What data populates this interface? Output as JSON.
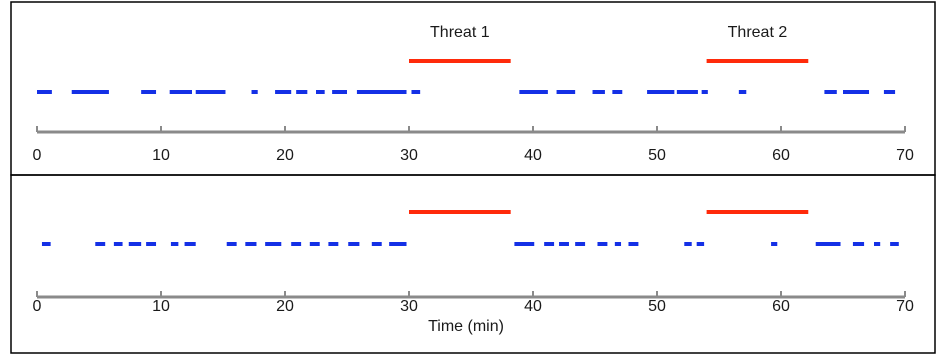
{
  "chart_data": [
    {
      "type": "timeline",
      "xlim": [
        0,
        70
      ],
      "xticks": [
        "0",
        "10",
        "20",
        "30",
        "40",
        "50",
        "60",
        "70"
      ],
      "xlabel": "",
      "threat_color": "#ff2a0a",
      "activity_color": "#1430e6",
      "threats": [
        {
          "label": "Threat 1",
          "start": 30,
          "end": 38.2
        },
        {
          "label": "Threat 2",
          "start": 54,
          "end": 62.2
        }
      ],
      "activity_segments": [
        [
          0,
          1.2
        ],
        [
          2.8,
          5.8
        ],
        [
          8.4,
          9.6
        ],
        [
          10.7,
          12.5
        ],
        [
          12.8,
          15.2
        ],
        [
          17.3,
          17.8
        ],
        [
          19.2,
          20.5
        ],
        [
          20.9,
          21.8
        ],
        [
          22.5,
          23.2
        ],
        [
          23.8,
          25.0
        ],
        [
          25.8,
          29.8
        ],
        [
          30.2,
          30.9
        ],
        [
          38.9,
          41.2
        ],
        [
          41.9,
          43.4
        ],
        [
          44.8,
          45.8
        ],
        [
          46.4,
          47.2
        ],
        [
          49.2,
          51.4
        ],
        [
          51.6,
          53.3
        ],
        [
          53.6,
          54.1
        ],
        [
          56.6,
          57.2
        ],
        [
          63.5,
          64.5
        ],
        [
          65.0,
          67.1
        ],
        [
          68.3,
          69.2
        ]
      ]
    },
    {
      "type": "timeline",
      "xlim": [
        0,
        70
      ],
      "xticks": [
        "0",
        "10",
        "20",
        "30",
        "40",
        "50",
        "60",
        "70"
      ],
      "xlabel": "Time (min)",
      "threat_color": "#ff2a0a",
      "activity_color": "#1430e6",
      "threats": [
        {
          "label": "",
          "start": 30,
          "end": 38.2
        },
        {
          "label": "",
          "start": 54,
          "end": 62.2
        }
      ],
      "activity_segments": [
        [
          0.4,
          1.1
        ],
        [
          4.7,
          5.5
        ],
        [
          6.2,
          6.9
        ],
        [
          7.4,
          8.4
        ],
        [
          8.8,
          9.6
        ],
        [
          10.8,
          11.4
        ],
        [
          11.9,
          12.8
        ],
        [
          15.3,
          16.1
        ],
        [
          16.8,
          17.7
        ],
        [
          18.4,
          19.7
        ],
        [
          20.5,
          21.3
        ],
        [
          22.0,
          22.8
        ],
        [
          23.5,
          24.3
        ],
        [
          25.1,
          26.0
        ],
        [
          27.0,
          27.8
        ],
        [
          28.4,
          29.8
        ],
        [
          38.5,
          40.1
        ],
        [
          40.9,
          41.7
        ],
        [
          42.1,
          42.9
        ],
        [
          43.4,
          44.2
        ],
        [
          45.2,
          46.0
        ],
        [
          46.6,
          47.1
        ],
        [
          47.7,
          48.5
        ],
        [
          52.2,
          52.8
        ],
        [
          53.2,
          53.8
        ],
        [
          59.2,
          59.7
        ],
        [
          62.8,
          64.8
        ],
        [
          65.8,
          66.7
        ],
        [
          67.5,
          68.0
        ],
        [
          68.8,
          69.5
        ]
      ]
    }
  ]
}
